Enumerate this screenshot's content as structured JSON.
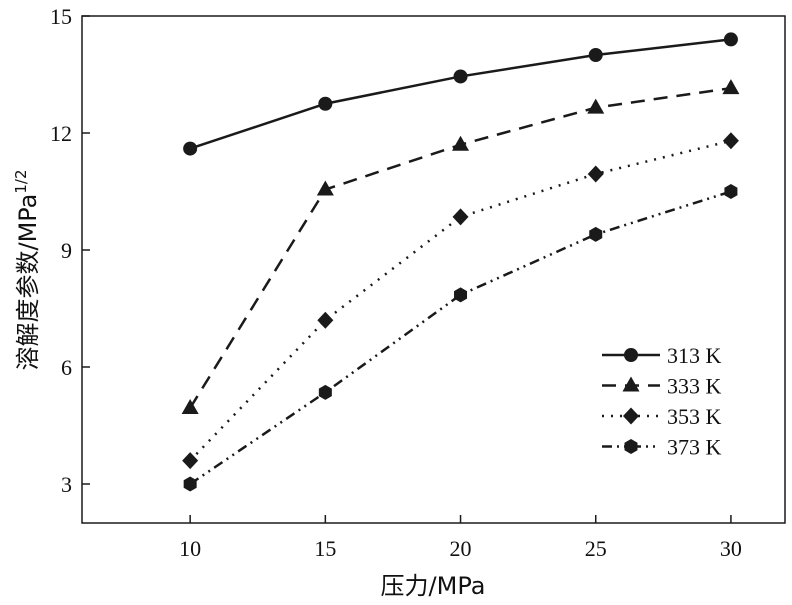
{
  "chart_data": {
    "type": "line",
    "xlabel": "压力/MPa",
    "ylabel": "溶解度参数/MPa",
    "ylabel_sup": "1/2",
    "xlim": [
      6,
      32
    ],
    "ylim": [
      2,
      15
    ],
    "x": [
      10,
      15,
      20,
      25,
      30
    ],
    "xticks": [
      "10",
      "15",
      "20",
      "25",
      "30"
    ],
    "yticks": [
      "3",
      "6",
      "9",
      "12",
      "15"
    ],
    "grid": false,
    "legend_position": "bottom-right",
    "series": [
      {
        "name": "313 K",
        "marker": "circle",
        "dash": "solid",
        "values": [
          11.6,
          12.75,
          13.45,
          14.0,
          14.4
        ]
      },
      {
        "name": "333 K",
        "marker": "triangle",
        "dash": "dashed",
        "values": [
          4.95,
          10.55,
          11.7,
          12.65,
          13.15
        ]
      },
      {
        "name": "353 K",
        "marker": "diamond",
        "dash": "dotted",
        "values": [
          3.6,
          7.2,
          9.85,
          10.95,
          11.8
        ]
      },
      {
        "name": "373 K",
        "marker": "hexagon",
        "dash": "dash-dot-dot",
        "values": [
          3.0,
          5.35,
          7.85,
          9.4,
          10.5
        ]
      }
    ],
    "colors": {
      "line": "#1a1a1a",
      "marker": "#1a1a1a"
    }
  }
}
